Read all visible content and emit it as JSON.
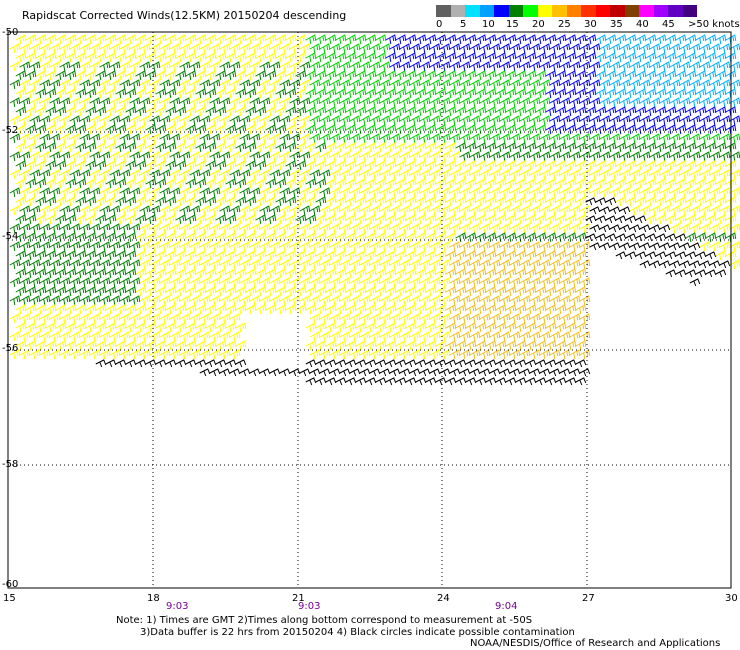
{
  "title": "Rapidscat Corrected Winds(12.5KM) 20150204 descending",
  "scale": {
    "labels": [
      "0",
      "5",
      "10",
      "15",
      "20",
      "25",
      "30",
      "35",
      "40",
      "45",
      ">50 knots"
    ],
    "colors": [
      "#606060",
      "#b0b0b0",
      "#00e0ff",
      "#00a0ff",
      "#0000ff",
      "#008000",
      "#00ff00",
      "#ffff00",
      "#ffc000",
      "#ff8000",
      "#ff3000",
      "#ff0000",
      "#c00000",
      "#804000",
      "#ff00ff",
      "#a000ff",
      "#6000c0",
      "#400080"
    ]
  },
  "map": {
    "lon_range": [
      15,
      30
    ],
    "lat_range": [
      -60,
      -50
    ],
    "lon_ticks": [
      "15",
      "18",
      "21",
      "24",
      "27",
      "30"
    ],
    "lat_ticks": [
      "-50",
      "-52",
      "-54",
      "-56",
      "-58",
      "-60"
    ],
    "times": [
      "9:03",
      "9:03",
      "9:04"
    ],
    "colors": {
      "yellow": "#ffff00",
      "orange": "#f0c020",
      "green": "#008000",
      "lime": "#00d000",
      "blue": "#0000ff",
      "cyan": "#00b0ff",
      "black": "#000000"
    }
  },
  "notes": {
    "line1": "Note: 1) Times are GMT 2)Times along bottom correspond to measurement at -50S",
    "line2": "3)Data buffer is 22 hrs from 20150204 4) Black circles indicate possible contamination",
    "credit": "NOAA/NESDIS/Office of Research and Applications"
  }
}
